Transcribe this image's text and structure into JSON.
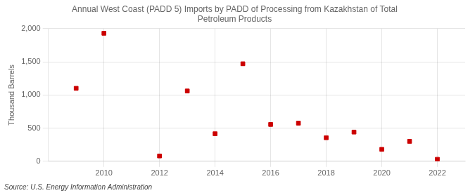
{
  "chart_data": {
    "type": "scatter",
    "title": "Annual West Coast (PADD 5) Imports by PADD of Processing from Kazakhstan of Total\nPetroleum Products",
    "y_label": "Thousand Barrels",
    "annotations": [
      "Source: U.S. Energy Information Administration"
    ],
    "x": [
      2009,
      2010,
      2012,
      2013,
      2014,
      2015,
      2016,
      2017,
      2018,
      2019,
      2020,
      2021,
      2022
    ],
    "values": [
      1100,
      1930,
      80,
      1060,
      415,
      1470,
      555,
      575,
      355,
      440,
      180,
      300,
      30
    ],
    "color": "#cc0000",
    "marker": "square",
    "xlim": [
      2008.0,
      2023.0
    ],
    "ylim": [
      0,
      2000
    ],
    "xticks": [
      2010,
      2012,
      2014,
      2016,
      2018,
      2020,
      2022
    ],
    "yticks": [
      0,
      500,
      {
        "value": 1000,
        "label": "1,000"
      },
      {
        "value": 1500,
        "label": "1,500"
      },
      {
        "value": 2000,
        "label": "2,000"
      }
    ],
    "grid": true
  }
}
